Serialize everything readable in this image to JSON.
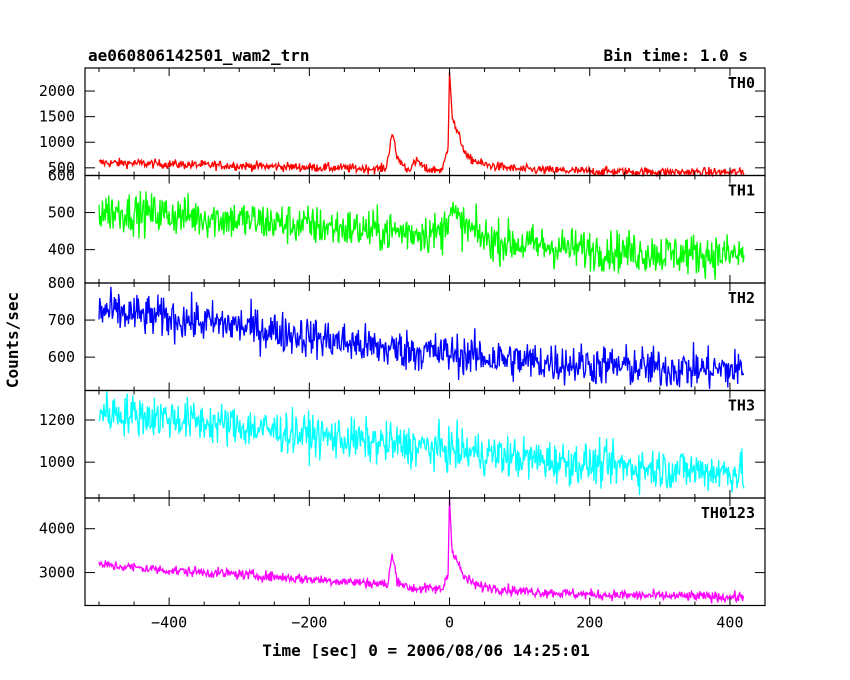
{
  "chart_data": {
    "type": "line",
    "title_left": "ae060806142501_wam2_trn",
    "title_right": "Bin time: 1.0 s",
    "xlabel": "Time [sec] 0 = 2006/08/06 14:25:01",
    "ylabel": "Counts/sec",
    "xlim": [
      -520,
      450
    ],
    "xticks": [
      -400,
      -200,
      0,
      200,
      400
    ],
    "grid": false,
    "panels": [
      {
        "name": "TH0",
        "color": "#ff0000",
        "ylim": [
          350,
          2450
        ],
        "yticks": [
          500,
          1000,
          1500,
          2000
        ],
        "points": [
          [
            -500,
            600
          ],
          [
            -450,
            590
          ],
          [
            -400,
            570
          ],
          [
            -300,
            540
          ],
          [
            -200,
            510
          ],
          [
            -100,
            480
          ],
          [
            -90,
            500
          ],
          [
            -82,
            1200
          ],
          [
            -75,
            700
          ],
          [
            -60,
            460
          ],
          [
            -45,
            640
          ],
          [
            -35,
            470
          ],
          [
            -10,
            460
          ],
          [
            -2,
            900
          ],
          [
            0,
            2450
          ],
          [
            4,
            1500
          ],
          [
            8,
            1300
          ],
          [
            14,
            1100
          ],
          [
            25,
            700
          ],
          [
            50,
            560
          ],
          [
            100,
            470
          ],
          [
            200,
            430
          ],
          [
            300,
            420
          ],
          [
            420,
            410
          ]
        ],
        "noise": 45
      },
      {
        "name": "TH1",
        "color": "#00ff00",
        "ylim": [
          310,
          600
        ],
        "yticks": [
          400,
          500,
          600
        ],
        "points": [
          [
            -500,
            505
          ],
          [
            -400,
            495
          ],
          [
            -300,
            480
          ],
          [
            -200,
            465
          ],
          [
            -100,
            450
          ],
          [
            -10,
            445
          ],
          [
            0,
            510
          ],
          [
            15,
            470
          ],
          [
            50,
            430
          ],
          [
            100,
            415
          ],
          [
            200,
            400
          ],
          [
            300,
            390
          ],
          [
            420,
            385
          ]
        ],
        "noise": 28
      },
      {
        "name": "TH2",
        "color": "#0000ff",
        "ylim": [
          510,
          800
        ],
        "yticks": [
          600,
          700,
          800
        ],
        "points": [
          [
            -500,
            725
          ],
          [
            -400,
            705
          ],
          [
            -300,
            685
          ],
          [
            -200,
            655
          ],
          [
            -100,
            625
          ],
          [
            0,
            610
          ],
          [
            100,
            590
          ],
          [
            200,
            580
          ],
          [
            300,
            570
          ],
          [
            420,
            565
          ]
        ],
        "noise": 28
      },
      {
        "name": "TH3",
        "color": "#00ffff",
        "ylim": [
          830,
          1340
        ],
        "yticks": [
          1000,
          1200
        ],
        "points": [
          [
            -500,
            1240
          ],
          [
            -400,
            1210
          ],
          [
            -300,
            1170
          ],
          [
            -200,
            1130
          ],
          [
            -100,
            1090
          ],
          [
            0,
            1060
          ],
          [
            100,
            1020
          ],
          [
            200,
            990
          ],
          [
            300,
            970
          ],
          [
            420,
            950
          ]
        ],
        "noise": 50
      },
      {
        "name": "TH0123",
        "color": "#ff00ff",
        "ylim": [
          2250,
          4700
        ],
        "yticks": [
          3000,
          4000
        ],
        "points": [
          [
            -500,
            3180
          ],
          [
            -400,
            3050
          ],
          [
            -300,
            2960
          ],
          [
            -200,
            2850
          ],
          [
            -100,
            2750
          ],
          [
            -88,
            2720
          ],
          [
            -82,
            3400
          ],
          [
            -75,
            2850
          ],
          [
            -60,
            2650
          ],
          [
            -10,
            2620
          ],
          [
            -2,
            3000
          ],
          [
            0,
            4700
          ],
          [
            4,
            3500
          ],
          [
            10,
            3300
          ],
          [
            20,
            2900
          ],
          [
            40,
            2700
          ],
          [
            100,
            2580
          ],
          [
            200,
            2500
          ],
          [
            300,
            2470
          ],
          [
            420,
            2440
          ]
        ],
        "noise": 60
      }
    ]
  }
}
